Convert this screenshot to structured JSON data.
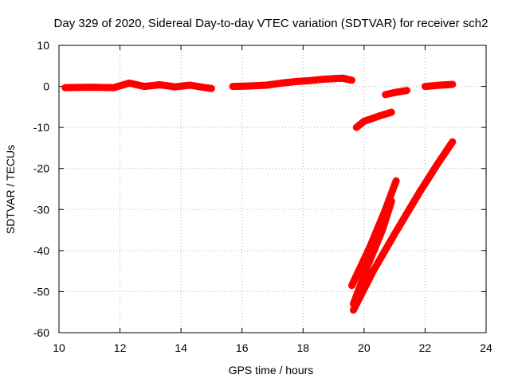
{
  "chart_data": {
    "type": "line",
    "title": "Day 329 of 2020, Sidereal Day-to-day VTEC variation (SDTVAR) for receiver sch2",
    "xlabel": "GPS time / hours",
    "ylabel": "SDTVAR / TECUs",
    "xlim": [
      10,
      24
    ],
    "ylim": [
      -60,
      10
    ],
    "xticks": [
      10,
      12,
      14,
      16,
      18,
      20,
      22,
      24
    ],
    "yticks": [
      10,
      0,
      -10,
      -20,
      -30,
      -40,
      -50,
      -60
    ],
    "grid": true,
    "legend": "none",
    "color": "#ff0000",
    "series": [
      {
        "x": [
          10.2,
          11.0,
          11.8,
          12.3,
          12.8,
          13.3,
          13.8,
          14.3,
          14.7,
          15.0
        ],
        "y": [
          -0.3,
          -0.2,
          -0.3,
          0.8,
          0.0,
          0.4,
          -0.1,
          0.3,
          -0.2,
          -0.5
        ]
      },
      {
        "x": [
          15.7,
          16.2,
          16.8,
          17.3,
          17.8,
          18.2,
          18.6,
          19.0,
          19.3,
          19.6
        ],
        "y": [
          0.0,
          0.1,
          0.3,
          0.8,
          1.2,
          1.4,
          1.7,
          1.9,
          2.0,
          1.5
        ]
      },
      {
        "x": [
          19.75,
          20.0,
          20.5,
          20.9
        ],
        "y": [
          -10.0,
          -8.5,
          -7.2,
          -6.3
        ]
      },
      {
        "x": [
          20.7,
          21.0,
          21.4
        ],
        "y": [
          -2.0,
          -1.5,
          -1.0
        ]
      },
      {
        "x": [
          22.0,
          22.5,
          22.9
        ],
        "y": [
          0.0,
          0.3,
          0.5
        ]
      },
      {
        "x": [
          19.6,
          20.2,
          20.7,
          21.05
        ],
        "y": [
          -48.5,
          -39.0,
          -30.0,
          -23.0
        ]
      },
      {
        "x": [
          19.65,
          20.1,
          20.6,
          20.9
        ],
        "y": [
          -53.0,
          -44.0,
          -35.0,
          -28.0
        ]
      },
      {
        "x": [
          19.65,
          20.3,
          21.0,
          21.8,
          22.4,
          22.9
        ],
        "y": [
          -54.5,
          -45.0,
          -36.0,
          -26.0,
          -19.0,
          -13.5
        ]
      }
    ]
  }
}
